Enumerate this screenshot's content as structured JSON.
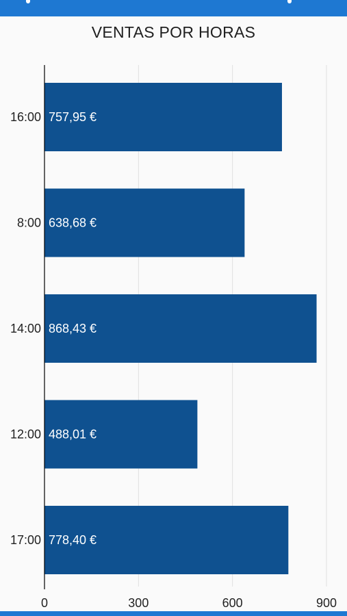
{
  "colors": {
    "header_bar": "#1e78d2",
    "bar_fill": "#0f5190",
    "grid": "#e0e0e0",
    "axis": "#000000"
  },
  "chart_data": {
    "type": "bar",
    "orientation": "horizontal",
    "title": "VENTAS POR HORAS",
    "xlabel": "",
    "ylabel": "",
    "categories": [
      "16:00",
      "8:00",
      "14:00",
      "12:00",
      "17:00"
    ],
    "values": [
      757.95,
      638.68,
      868.43,
      488.01,
      778.4
    ],
    "value_labels": [
      "757,95 €",
      "638,68 €",
      "868,43 €",
      "488,01 €",
      "778,40 €"
    ],
    "xlim": [
      0,
      900
    ],
    "x_ticks": [
      0,
      300,
      600,
      900
    ],
    "grid": "vertical",
    "legend": "none"
  }
}
